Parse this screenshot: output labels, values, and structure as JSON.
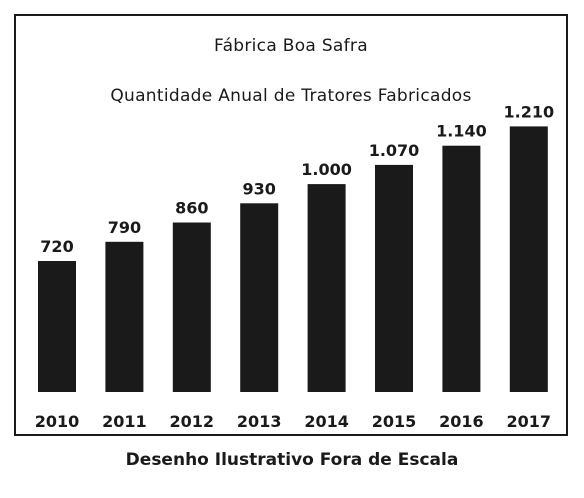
{
  "chart_data": {
    "type": "bar",
    "title": "Fábrica Boa Safra",
    "subtitle": "Quantidade Anual de Tratores Fabricados",
    "categories": [
      "2010",
      "2011",
      "2012",
      "2013",
      "2014",
      "2015",
      "2016",
      "2017"
    ],
    "values": [
      720,
      790,
      860,
      930,
      1000,
      1070,
      1140,
      1210
    ],
    "value_labels": [
      "720",
      "790",
      "860",
      "930",
      "1.000",
      "1.070",
      "1.140",
      "1.210"
    ],
    "grid": false,
    "legend": "none",
    "bar_color": "#1a1a1a"
  },
  "caption": "Desenho Ilustrativo Fora de Escala"
}
